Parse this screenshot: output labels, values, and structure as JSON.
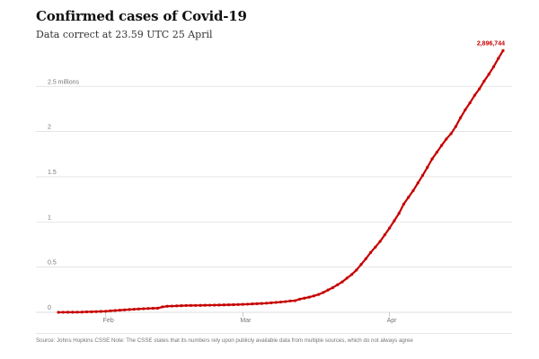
{
  "title": "Confirmed cases of Covid-19",
  "subtitle": "Data correct at 23.59 UTC 25 April",
  "source": "Source: Johns Hopkins CSSE Note: The CSSE states that its numbers rely upon publicly available data from multiple sources, which do not always agree",
  "colors": {
    "line": "#c70000",
    "grid": "#dcdcdc",
    "axis_text": "#767676"
  },
  "chart_data": {
    "type": "line",
    "y_tick_labels": [
      "0",
      "0.5",
      "1",
      "1.5",
      "2",
      "2.5 millions"
    ],
    "y_ticks": [
      0,
      0.5,
      1,
      1.5,
      2,
      2.5
    ],
    "ylim": [
      0,
      2.9
    ],
    "x_tick_labels": [
      "Feb",
      "Mar",
      "Apr"
    ],
    "x_ticks": [
      "2020-02-01",
      "2020-03-01",
      "2020-04-01"
    ],
    "xlim": [
      "2020-01-22",
      "2020-04-25"
    ],
    "end_label": "2,896,744",
    "grid": true,
    "series": [
      {
        "x": [
          "2020-01-22",
          "2020-01-23",
          "2020-01-24",
          "2020-01-25",
          "2020-01-26",
          "2020-01-27",
          "2020-01-28",
          "2020-01-29",
          "2020-01-30",
          "2020-01-31",
          "2020-02-01",
          "2020-02-02",
          "2020-02-03",
          "2020-02-04",
          "2020-02-05",
          "2020-02-06",
          "2020-02-07",
          "2020-02-08",
          "2020-02-09",
          "2020-02-10",
          "2020-02-11",
          "2020-02-12",
          "2020-02-13",
          "2020-02-14",
          "2020-02-15",
          "2020-02-16",
          "2020-02-17",
          "2020-02-18",
          "2020-02-19",
          "2020-02-20",
          "2020-02-21",
          "2020-02-22",
          "2020-02-23",
          "2020-02-24",
          "2020-02-25",
          "2020-02-26",
          "2020-02-27",
          "2020-02-28",
          "2020-02-29",
          "2020-03-01",
          "2020-03-02",
          "2020-03-03",
          "2020-03-04",
          "2020-03-05",
          "2020-03-06",
          "2020-03-07",
          "2020-03-08",
          "2020-03-09",
          "2020-03-10",
          "2020-03-11",
          "2020-03-12",
          "2020-03-13",
          "2020-03-14",
          "2020-03-15",
          "2020-03-16",
          "2020-03-17",
          "2020-03-18",
          "2020-03-19",
          "2020-03-20",
          "2020-03-21",
          "2020-03-22",
          "2020-03-23",
          "2020-03-24",
          "2020-03-25",
          "2020-03-26",
          "2020-03-27",
          "2020-03-28",
          "2020-03-29",
          "2020-03-30",
          "2020-03-31",
          "2020-04-01",
          "2020-04-02",
          "2020-04-03",
          "2020-04-04",
          "2020-04-05",
          "2020-04-06",
          "2020-04-07",
          "2020-04-08",
          "2020-04-09",
          "2020-04-10",
          "2020-04-11",
          "2020-04-12",
          "2020-04-13",
          "2020-04-14",
          "2020-04-15",
          "2020-04-16",
          "2020-04-17",
          "2020-04-18",
          "2020-04-19",
          "2020-04-20",
          "2020-04-21",
          "2020-04-22",
          "2020-04-23",
          "2020-04-24",
          "2020-04-25"
        ],
        "y": [
          0.0006,
          0.0007,
          0.0009,
          0.0014,
          0.0021,
          0.0029,
          0.0055,
          0.006,
          0.0078,
          0.0098,
          0.0119,
          0.0168,
          0.0199,
          0.0236,
          0.0276,
          0.0308,
          0.0344,
          0.0371,
          0.0401,
          0.0426,
          0.0446,
          0.0456,
          0.0603,
          0.0669,
          0.069,
          0.0712,
          0.0731,
          0.0752,
          0.0758,
          0.0762,
          0.0768,
          0.0786,
          0.0791,
          0.0798,
          0.0808,
          0.0818,
          0.0832,
          0.0845,
          0.0862,
          0.0882,
          0.0902,
          0.0928,
          0.0953,
          0.0977,
          0.1013,
          0.1055,
          0.1096,
          0.1137,
          0.1186,
          0.1262,
          0.1285,
          0.1457,
          0.1568,
          0.1675,
          0.1817,
          0.1978,
          0.2195,
          0.2469,
          0.2734,
          0.3047,
          0.3367,
          0.3785,
          0.4187,
          0.4677,
          0.5297,
          0.5934,
          0.6614,
          0.7217,
          0.7844,
          0.8579,
          0.9329,
          1.0127,
          1.0952,
          1.1977,
          1.2722,
          1.3466,
          1.4311,
          1.5153,
          1.6038,
          1.6972,
          1.771,
          1.8466,
          1.9175,
          1.9768,
          2.0563,
          2.1527,
          2.2406,
          2.3181,
          2.4016,
          2.4728,
          2.5592,
          2.6343,
          2.7171,
          2.8093,
          2.8967
        ]
      }
    ]
  }
}
